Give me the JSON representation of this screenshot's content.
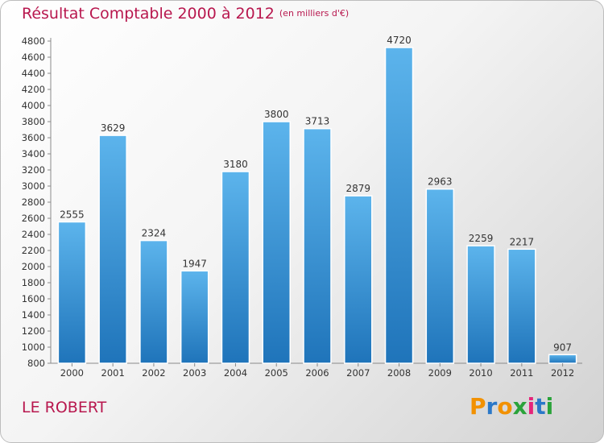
{
  "header": {
    "title": "Résultat Comptable 2000 à 2012",
    "unit_note": "(en milliers d'€)"
  },
  "footer": {
    "place_name": "LE ROBERT",
    "logo_text": "Proxiti"
  },
  "colors": {
    "accent": "#b8174e",
    "bar_top": "#5cb4ec",
    "bar_bottom": "#1f74ba",
    "logo_letters": [
      "#f29100",
      "#2b78c8",
      "#f29100",
      "#2aa33a",
      "#e5257a",
      "#2b78c8",
      "#2aa33a"
    ]
  },
  "chart_data": {
    "type": "bar",
    "title": "Résultat Comptable 2000 à 2012",
    "subtitle": "(en milliers d'€)",
    "xlabel": "",
    "ylabel": "",
    "categories": [
      "2000",
      "2001",
      "2002",
      "2003",
      "2004",
      "2005",
      "2006",
      "2007",
      "2008",
      "2009",
      "2010",
      "2011",
      "2012"
    ],
    "values": [
      2555,
      3629,
      2324,
      1947,
      3180,
      3800,
      3713,
      2879,
      4720,
      2963,
      2259,
      2217,
      907
    ],
    "ylim": [
      800,
      4800
    ],
    "ytick_step": 200,
    "grid": false,
    "data_labels": true
  }
}
